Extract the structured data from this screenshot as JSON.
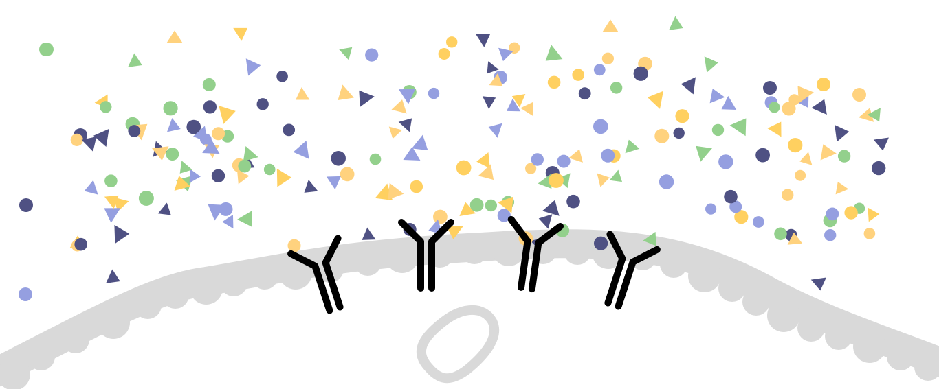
{
  "colors": {
    "background": "#FFFFFF",
    "membrane": "#D9D9D9",
    "antibody": "#000000",
    "particle_green": "#93D08C",
    "particle_yellow": "#FFD060",
    "particle_orange": "#FFD27E",
    "particle_light_purple": "#959FE0",
    "particle_dark_purple": "#4F5183"
  },
  "icons": {
    "membrane": "cell-membrane",
    "organelle": "organelle-outline",
    "antibody": "y-shaped-antibody",
    "particle": "colored-particle"
  }
}
